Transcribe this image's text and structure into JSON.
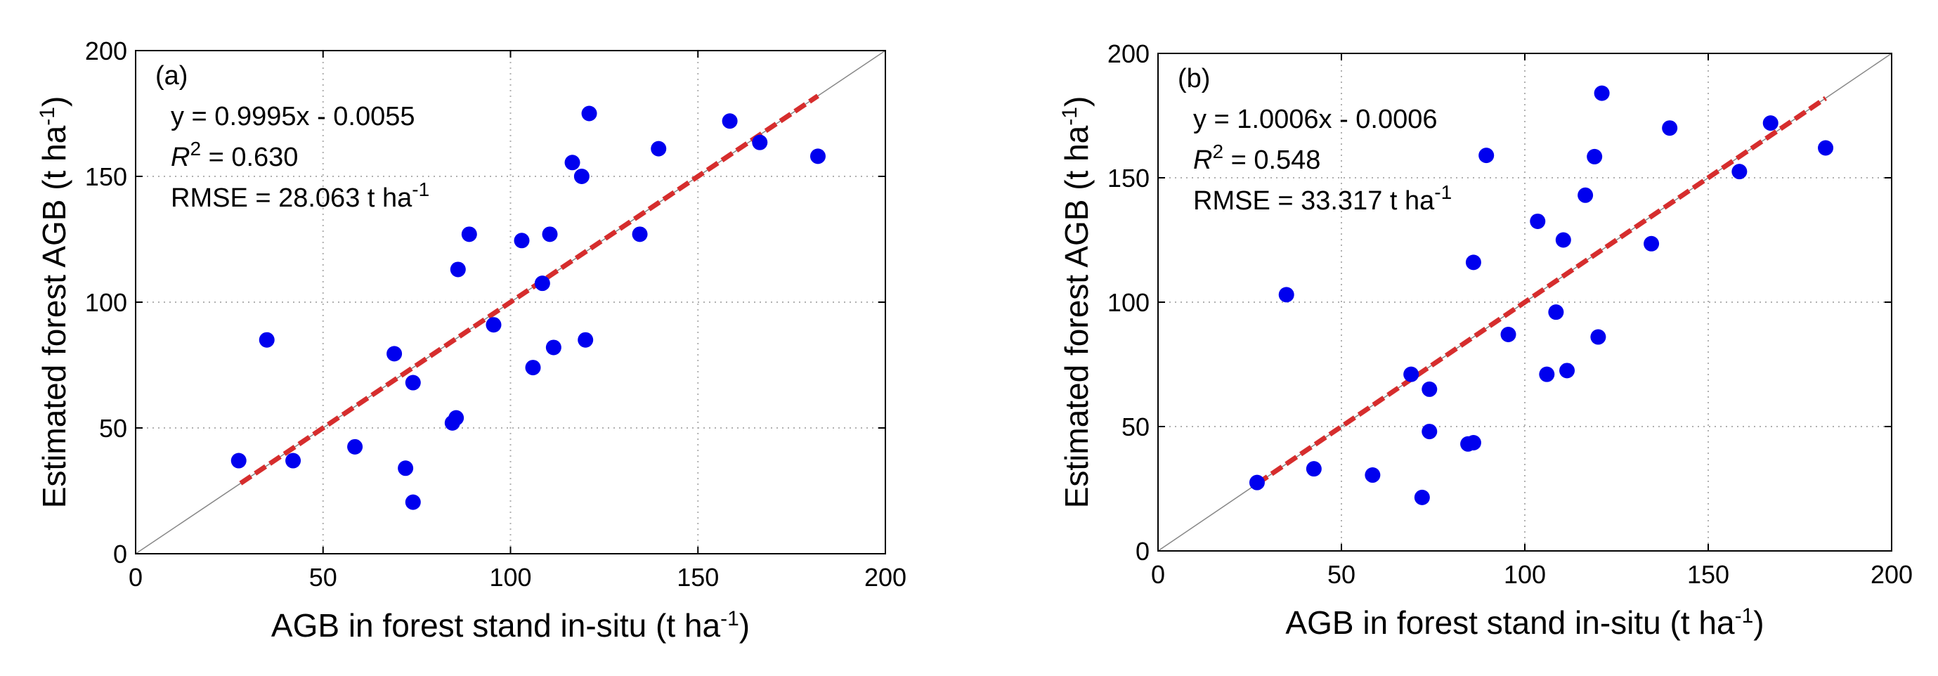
{
  "chart_data": [
    {
      "type": "scatter",
      "panel_label": "(a)",
      "xlabel": "AGB in forest stand in-situ (t ha",
      "ylabel": "Estimated forest AGB (t ha",
      "unit_sup": "-1",
      "unit_close": ")",
      "xlim": [
        0,
        200
      ],
      "ylim": [
        0,
        200
      ],
      "xticks": [
        0,
        50,
        100,
        150,
        200
      ],
      "yticks": [
        0,
        50,
        100,
        150,
        200
      ],
      "grid": true,
      "annotations": {
        "equation": "y = 0.9995x - 0.0055",
        "r2_symbol": "R",
        "r2_sup": "2",
        "r2_value": " = 0.630",
        "rmse_text": "RMSE = 28.063 t ha",
        "rmse_sup": "-1"
      },
      "identity_line": {
        "from": [
          0,
          0
        ],
        "to": [
          200,
          200
        ]
      },
      "fit_line": {
        "from": [
          28,
          28
        ],
        "to": [
          182,
          182
        ]
      },
      "points": [
        {
          "x": 27.5,
          "y": 37
        },
        {
          "x": 35,
          "y": 85
        },
        {
          "x": 42,
          "y": 37
        },
        {
          "x": 58.5,
          "y": 42.5
        },
        {
          "x": 69,
          "y": 79.5
        },
        {
          "x": 72,
          "y": 34
        },
        {
          "x": 74,
          "y": 20.5
        },
        {
          "x": 74,
          "y": 68
        },
        {
          "x": 84.5,
          "y": 52
        },
        {
          "x": 85.5,
          "y": 54
        },
        {
          "x": 86,
          "y": 113
        },
        {
          "x": 89,
          "y": 127
        },
        {
          "x": 95.5,
          "y": 91
        },
        {
          "x": 103,
          "y": 124.5
        },
        {
          "x": 106,
          "y": 74
        },
        {
          "x": 108.5,
          "y": 107.5
        },
        {
          "x": 110.5,
          "y": 127
        },
        {
          "x": 111.5,
          "y": 82
        },
        {
          "x": 116.5,
          "y": 155.5
        },
        {
          "x": 119,
          "y": 150
        },
        {
          "x": 120,
          "y": 85
        },
        {
          "x": 121,
          "y": 175
        },
        {
          "x": 134.5,
          "y": 127
        },
        {
          "x": 139.5,
          "y": 161
        },
        {
          "x": 158.5,
          "y": 172
        },
        {
          "x": 166.5,
          "y": 163.5
        },
        {
          "x": 182,
          "y": 158
        }
      ]
    },
    {
      "type": "scatter",
      "panel_label": "(b)",
      "xlabel": "AGB in forest stand in-situ (t ha",
      "ylabel": "Estimated forest AGB (t ha",
      "unit_sup": "-1",
      "unit_close": ")",
      "xlim": [
        0,
        200
      ],
      "ylim": [
        0,
        200
      ],
      "xticks": [
        0,
        50,
        100,
        150,
        200
      ],
      "yticks": [
        0,
        50,
        100,
        150,
        200
      ],
      "grid": true,
      "annotations": {
        "equation": "y = 1.0006x - 0.0006",
        "r2_symbol": "R",
        "r2_sup": "2",
        "r2_value": " = 0.548",
        "rmse_text": "RMSE = 33.317 t ha",
        "rmse_sup": "-1"
      },
      "identity_line": {
        "from": [
          0,
          0
        ],
        "to": [
          200,
          200
        ]
      },
      "fit_line": {
        "from": [
          27,
          27
        ],
        "to": [
          182,
          182
        ]
      },
      "points": [
        {
          "x": 27,
          "y": 27.5
        },
        {
          "x": 35,
          "y": 103
        },
        {
          "x": 42.5,
          "y": 33
        },
        {
          "x": 58.5,
          "y": 30.5
        },
        {
          "x": 69,
          "y": 71
        },
        {
          "x": 72,
          "y": 21.5
        },
        {
          "x": 74,
          "y": 65
        },
        {
          "x": 74,
          "y": 48
        },
        {
          "x": 84.5,
          "y": 43
        },
        {
          "x": 86,
          "y": 43.5
        },
        {
          "x": 86,
          "y": 116
        },
        {
          "x": 89.5,
          "y": 159
        },
        {
          "x": 95.5,
          "y": 87
        },
        {
          "x": 103.5,
          "y": 132.5
        },
        {
          "x": 106,
          "y": 71
        },
        {
          "x": 108.5,
          "y": 96
        },
        {
          "x": 110.5,
          "y": 125
        },
        {
          "x": 111.5,
          "y": 72.5
        },
        {
          "x": 116.5,
          "y": 143
        },
        {
          "x": 119,
          "y": 158.5
        },
        {
          "x": 120,
          "y": 86
        },
        {
          "x": 121,
          "y": 184
        },
        {
          "x": 134.5,
          "y": 123.5
        },
        {
          "x": 139.5,
          "y": 170
        },
        {
          "x": 158.5,
          "y": 152.5
        },
        {
          "x": 167,
          "y": 172
        },
        {
          "x": 182,
          "y": 162
        }
      ]
    }
  ],
  "colors": {
    "marker": "#0000ee",
    "fit_line": "#d62d2d",
    "identity_line": "#888888",
    "grid": "#b0b0b0",
    "axis": "#000000"
  }
}
